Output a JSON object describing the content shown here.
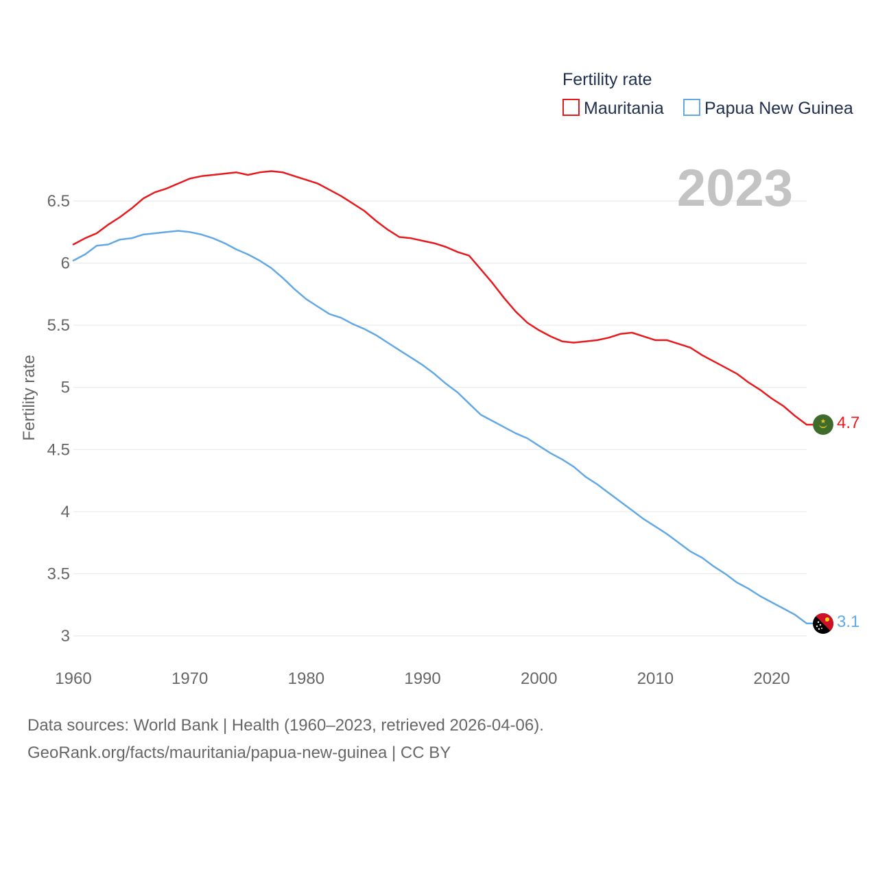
{
  "chart_data": {
    "type": "line",
    "ylabel": "Fertility rate",
    "xlabel": "",
    "legend_title": "Fertility rate",
    "legend_position": "top-right",
    "current_year_label": "2023",
    "xlim": [
      1960,
      2023
    ],
    "ylim": [
      2.9,
      6.75
    ],
    "x_ticks": [
      1960,
      1970,
      1980,
      1990,
      2000,
      2010,
      2020
    ],
    "y_ticks": [
      3,
      3.5,
      4,
      4.5,
      5,
      5.5,
      6,
      6.5
    ],
    "y_tick_labels": [
      "3",
      "3.5",
      "4",
      "4.5",
      "5",
      "5.5",
      "6",
      "6.5"
    ],
    "grid": true,
    "x": [
      1960,
      1961,
      1962,
      1963,
      1964,
      1965,
      1966,
      1967,
      1968,
      1969,
      1970,
      1971,
      1972,
      1973,
      1974,
      1975,
      1976,
      1977,
      1978,
      1979,
      1980,
      1981,
      1982,
      1983,
      1984,
      1985,
      1986,
      1987,
      1988,
      1989,
      1990,
      1991,
      1992,
      1993,
      1994,
      1995,
      1996,
      1997,
      1998,
      1999,
      2000,
      2001,
      2002,
      2003,
      2004,
      2005,
      2006,
      2007,
      2008,
      2009,
      2010,
      2011,
      2012,
      2013,
      2014,
      2015,
      2016,
      2017,
      2018,
      2019,
      2020,
      2021,
      2022,
      2023
    ],
    "series": [
      {
        "name": "Mauritania",
        "color": "#e8191c",
        "end_label": "4.7",
        "values": [
          6.15,
          6.2,
          6.24,
          6.31,
          6.37,
          6.44,
          6.52,
          6.57,
          6.6,
          6.64,
          6.68,
          6.7,
          6.71,
          6.72,
          6.73,
          6.71,
          6.73,
          6.74,
          6.73,
          6.7,
          6.67,
          6.64,
          6.59,
          6.54,
          6.48,
          6.42,
          6.34,
          6.27,
          6.21,
          6.2,
          6.18,
          6.16,
          6.13,
          6.09,
          6.06,
          5.95,
          5.84,
          5.72,
          5.61,
          5.52,
          5.46,
          5.41,
          5.37,
          5.36,
          5.37,
          5.38,
          5.4,
          5.43,
          5.44,
          5.41,
          5.38,
          5.38,
          5.35,
          5.32,
          5.26,
          5.21,
          5.16,
          5.11,
          5.04,
          4.98,
          4.91,
          4.85,
          4.77,
          4.7
        ]
      },
      {
        "name": "Papua New Guinea",
        "color": "#62a8e5",
        "end_label": "3.1",
        "values": [
          6.02,
          6.07,
          6.14,
          6.15,
          6.19,
          6.2,
          6.23,
          6.24,
          6.25,
          6.26,
          6.25,
          6.23,
          6.2,
          6.16,
          6.11,
          6.07,
          6.02,
          5.96,
          5.88,
          5.79,
          5.71,
          5.65,
          5.59,
          5.56,
          5.51,
          5.47,
          5.42,
          5.36,
          5.3,
          5.24,
          5.18,
          5.11,
          5.03,
          4.96,
          4.87,
          4.78,
          4.73,
          4.68,
          4.63,
          4.59,
          4.53,
          4.47,
          4.42,
          4.36,
          4.28,
          4.22,
          4.15,
          4.08,
          4.01,
          3.94,
          3.88,
          3.82,
          3.75,
          3.68,
          3.63,
          3.56,
          3.5,
          3.43,
          3.38,
          3.32,
          3.27,
          3.22,
          3.17,
          3.1
        ]
      }
    ]
  },
  "flags": {
    "mauritania": "mauritania-flag-icon",
    "papua_new_guinea": "papua-new-guinea-flag-icon"
  },
  "footer": {
    "line1": "Data sources: World Bank | Health (1960–2023, retrieved 2026-04-06).",
    "line2": "GeoRank.org/facts/mauritania/papua-new-guinea | CC BY"
  }
}
